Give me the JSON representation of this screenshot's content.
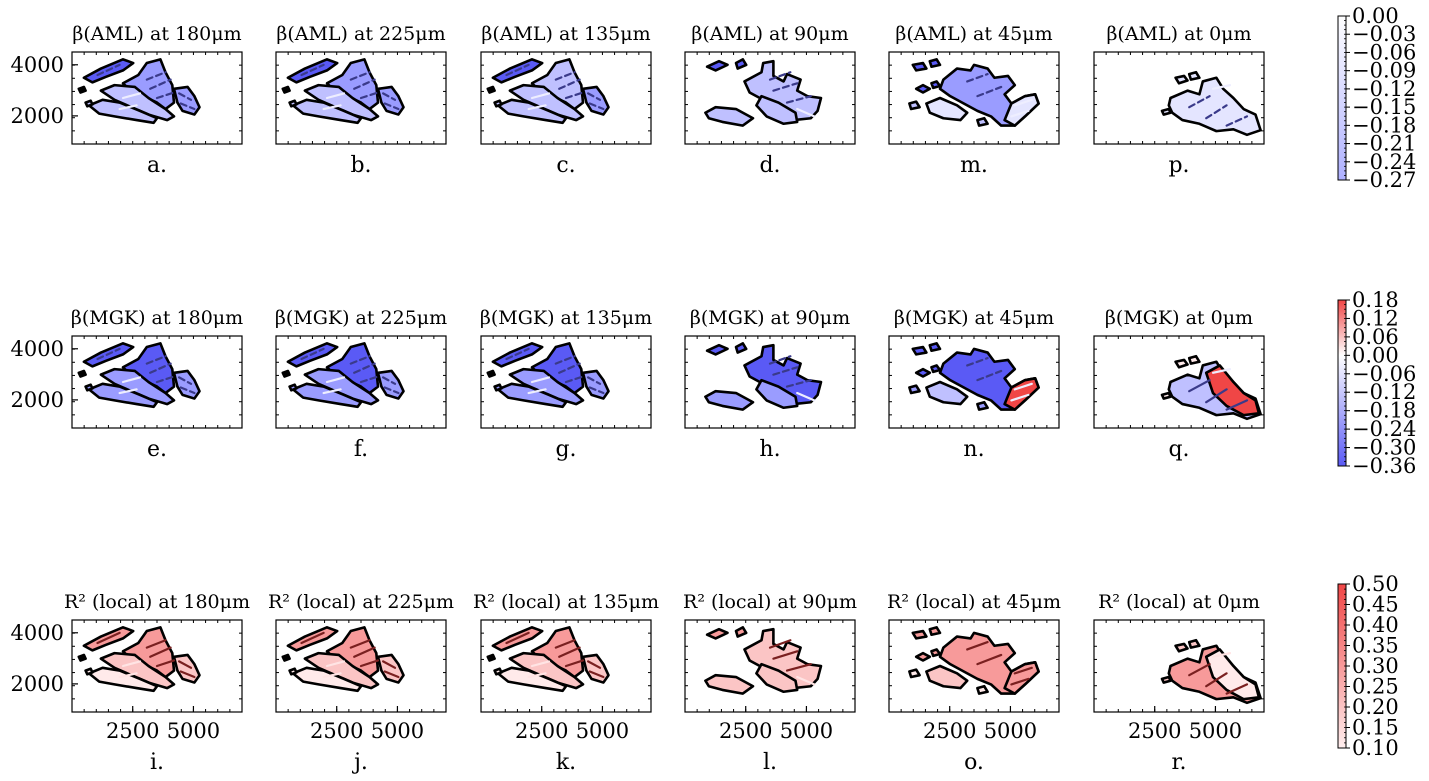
{
  "chart_data": [
    {
      "type": "heatmap",
      "title": "β(AML) at 180μm",
      "panel": "a.",
      "variable": "β(AML)",
      "depth_um": 180,
      "yticks": [
        2000,
        4000
      ],
      "xticks": [],
      "xlim": [
        0,
        7000
      ],
      "ylim": [
        900,
        4500
      ]
    },
    {
      "type": "heatmap",
      "title": "β(AML) at 225μm",
      "panel": "b.",
      "variable": "β(AML)",
      "depth_um": 225,
      "yticks": [],
      "xticks": [],
      "xlim": [
        0,
        7000
      ],
      "ylim": [
        900,
        4500
      ]
    },
    {
      "type": "heatmap",
      "title": "β(AML) at 135μm",
      "panel": "c.",
      "variable": "β(AML)",
      "depth_um": 135,
      "yticks": [],
      "xticks": [],
      "xlim": [
        0,
        7000
      ],
      "ylim": [
        900,
        4500
      ]
    },
    {
      "type": "heatmap",
      "title": "β(AML) at 90μm",
      "panel": "d.",
      "variable": "β(AML)",
      "depth_um": 90,
      "yticks": [],
      "xticks": [],
      "xlim": [
        0,
        7000
      ],
      "ylim": [
        900,
        4500
      ]
    },
    {
      "type": "heatmap",
      "title": "β(AML) at 45μm",
      "panel": "m.",
      "variable": "β(AML)",
      "depth_um": 45,
      "yticks": [],
      "xticks": [],
      "xlim": [
        0,
        7000
      ],
      "ylim": [
        900,
        4500
      ]
    },
    {
      "type": "heatmap",
      "title": "β(AML) at 0μm",
      "panel": "p.",
      "variable": "β(AML)",
      "depth_um": 0,
      "yticks": [],
      "xticks": [],
      "xlim": [
        0,
        7000
      ],
      "ylim": [
        900,
        4500
      ]
    },
    {
      "type": "heatmap",
      "title": "β(MGK) at 180μm",
      "panel": "e.",
      "variable": "β(MGK)",
      "depth_um": 180,
      "yticks": [
        2000,
        4000
      ],
      "xticks": [],
      "xlim": [
        0,
        7000
      ],
      "ylim": [
        900,
        4500
      ]
    },
    {
      "type": "heatmap",
      "title": "β(MGK) at 225μm",
      "panel": "f.",
      "variable": "β(MGK)",
      "depth_um": 225,
      "yticks": [],
      "xticks": [],
      "xlim": [
        0,
        7000
      ],
      "ylim": [
        900,
        4500
      ]
    },
    {
      "type": "heatmap",
      "title": "β(MGK) at 135μm",
      "panel": "g.",
      "variable": "β(MGK)",
      "depth_um": 135,
      "yticks": [],
      "xticks": [],
      "xlim": [
        0,
        7000
      ],
      "ylim": [
        900,
        4500
      ]
    },
    {
      "type": "heatmap",
      "title": "β(MGK) at 90μm",
      "panel": "h.",
      "variable": "β(MGK)",
      "depth_um": 90,
      "yticks": [],
      "xticks": [],
      "xlim": [
        0,
        7000
      ],
      "ylim": [
        900,
        4500
      ]
    },
    {
      "type": "heatmap",
      "title": "β(MGK) at 45μm",
      "panel": "n.",
      "variable": "β(MGK)",
      "depth_um": 45,
      "yticks": [],
      "xticks": [],
      "xlim": [
        0,
        7000
      ],
      "ylim": [
        900,
        4500
      ]
    },
    {
      "type": "heatmap",
      "title": "β(MGK) at 0μm",
      "panel": "q.",
      "variable": "β(MGK)",
      "depth_um": 0,
      "yticks": [],
      "xticks": [],
      "xlim": [
        0,
        7000
      ],
      "ylim": [
        900,
        4500
      ]
    },
    {
      "type": "heatmap",
      "title": "R² (local) at 180μm",
      "panel": "i.",
      "variable": "R² (local)",
      "depth_um": 180,
      "yticks": [
        2000,
        4000
      ],
      "xticks": [
        2500,
        5000
      ],
      "xlim": [
        0,
        7000
      ],
      "ylim": [
        900,
        4500
      ]
    },
    {
      "type": "heatmap",
      "title": "R² (local) at 225μm",
      "panel": "j.",
      "variable": "R² (local)",
      "depth_um": 225,
      "yticks": [],
      "xticks": [
        2500,
        5000
      ],
      "xlim": [
        0,
        7000
      ],
      "ylim": [
        900,
        4500
      ]
    },
    {
      "type": "heatmap",
      "title": "R² (local) at 135μm",
      "panel": "k.",
      "variable": "R² (local)",
      "depth_um": 135,
      "yticks": [],
      "xticks": [
        2500,
        5000
      ],
      "xlim": [
        0,
        7000
      ],
      "ylim": [
        900,
        4500
      ]
    },
    {
      "type": "heatmap",
      "title": "R² (local) at 90μm",
      "panel": "l.",
      "variable": "R² (local)",
      "depth_um": 90,
      "yticks": [],
      "xticks": [
        2500,
        5000
      ],
      "xlim": [
        0,
        7000
      ],
      "ylim": [
        900,
        4500
      ]
    },
    {
      "type": "heatmap",
      "title": "R² (local) at 45μm",
      "panel": "o.",
      "variable": "R² (local)",
      "depth_um": 45,
      "yticks": [],
      "xticks": [
        2500,
        5000
      ],
      "xlim": [
        0,
        7000
      ],
      "ylim": [
        900,
        4500
      ]
    },
    {
      "type": "heatmap",
      "title": "R² (local) at 0μm",
      "panel": "r.",
      "variable": "R² (local)",
      "depth_um": 0,
      "yticks": [],
      "xticks": [
        2500,
        5000
      ],
      "xlim": [
        0,
        7000
      ],
      "ylim": [
        900,
        4500
      ]
    }
  ],
  "colorbars": [
    {
      "row": "β(AML)",
      "colormap": "bwr",
      "ticks": [
        "0.00",
        "−0.03",
        "−0.06",
        "−0.09",
        "−0.12",
        "−0.15",
        "−0.18",
        "−0.21",
        "−0.24",
        "−0.27"
      ],
      "range": [
        -0.27,
        0.0
      ],
      "low_color": "#aeb0ff",
      "high_color": "#ffffff"
    },
    {
      "row": "β(MGK)",
      "colormap": "bwr",
      "ticks": [
        "0.18",
        "0.12",
        "0.06",
        "0.00",
        "−0.06",
        "−0.12",
        "−0.18",
        "−0.24",
        "−0.30",
        "−0.36"
      ],
      "range": [
        -0.36,
        0.18
      ],
      "low_color": "#5a5af5",
      "high_color": "#f04646"
    },
    {
      "row": "R² (local)",
      "colormap": "reds",
      "ticks": [
        "0.50",
        "0.45",
        "0.40",
        "0.35",
        "0.30",
        "0.25",
        "0.20",
        "0.15",
        "0.10"
      ],
      "range": [
        0.1,
        0.5
      ],
      "low_color": "#ffeeee",
      "high_color": "#f04646"
    }
  ],
  "colors": {
    "blue_strong": "#5a5af5",
    "blue_mid": "#9a9cff",
    "blue_light": "#bfc0ff",
    "blue_pale": "#e4e5ff",
    "red_strong": "#f04646",
    "red_mid": "#f79a9a",
    "red_light": "#fbc5c5",
    "red_pale": "#ffeaea",
    "outline": "#000000"
  }
}
